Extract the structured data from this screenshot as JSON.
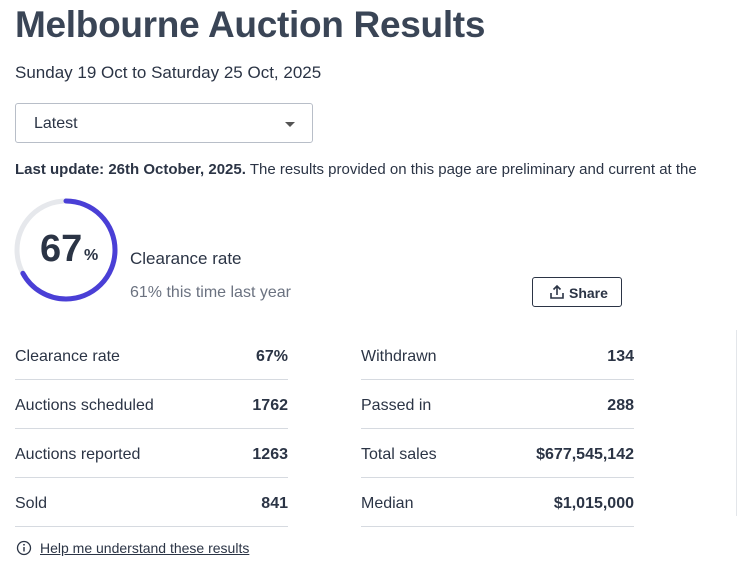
{
  "header": {
    "title": "Melbourne Auction Results",
    "subtitle": "Sunday 19 Oct to Saturday 25 Oct, 2025"
  },
  "dropdown": {
    "selected": "Latest"
  },
  "update": {
    "label": "Last update: 26th October, 2025.",
    "text": "The results provided on this page are preliminary and current at the"
  },
  "gauge": {
    "value": 67,
    "unit": "%",
    "label": "Clearance rate",
    "comparison": "61% this time last year"
  },
  "share": "Share",
  "stats": {
    "left": [
      [
        "Clearance rate",
        "67%"
      ],
      [
        "Auctions scheduled",
        "1762"
      ],
      [
        "Auctions reported",
        "1263"
      ],
      [
        "Sold",
        "841"
      ]
    ],
    "right": [
      [
        "Withdrawn",
        "134"
      ],
      [
        "Passed in",
        "288"
      ],
      [
        "Total sales",
        "$677,545,142"
      ],
      [
        "Median",
        "$1,015,000"
      ]
    ]
  },
  "help_link": "Help me understand these results"
}
